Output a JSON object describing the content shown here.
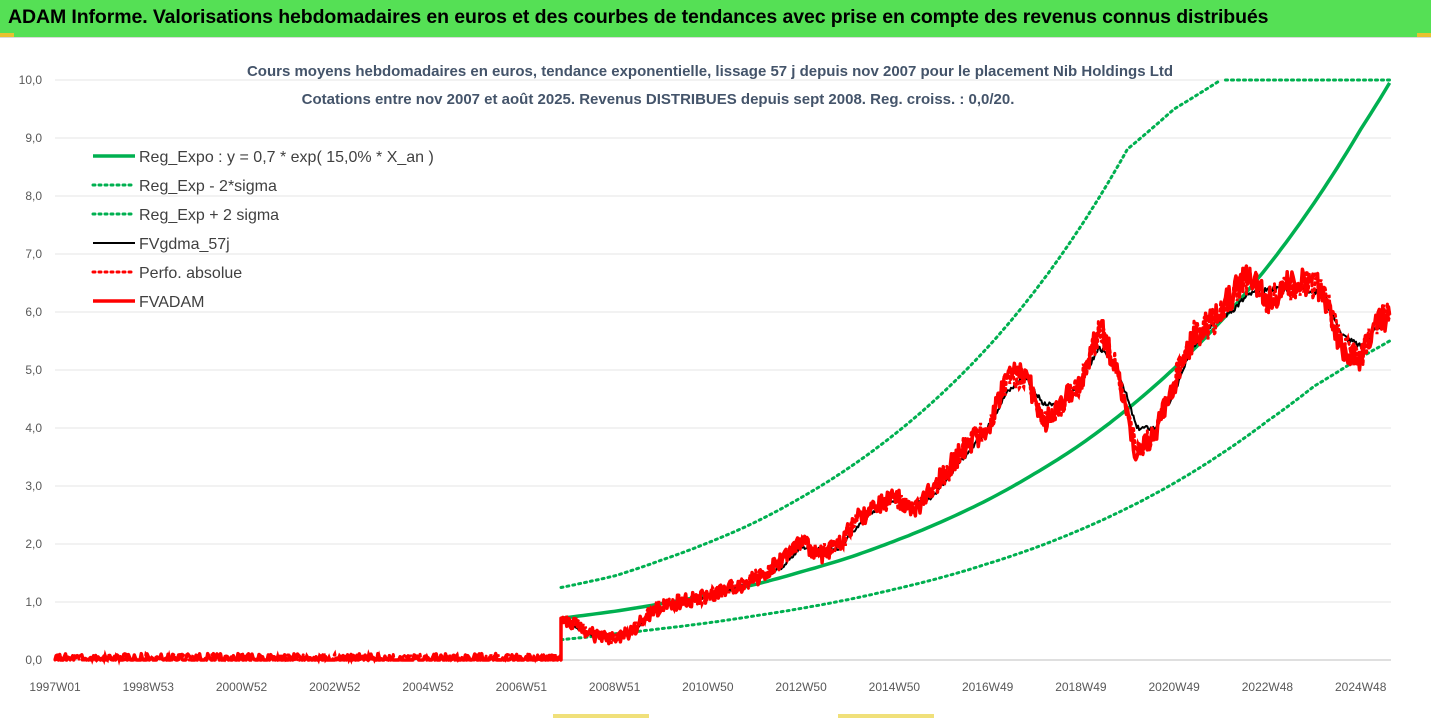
{
  "banner": {
    "title": "ADAM Informe. Valorisations hebdomadaires en euros et des courbes de tendances avec prise en compte des revenus connus distribués",
    "color": "#55e055"
  },
  "chart_data": {
    "type": "line",
    "title_lines": [
      "Cours moyens hebdomadaires en euros, tendance exponentielle, lissage 57 j depuis nov 2007 pour le placement Nib Holdings Ltd",
      "Cotations entre nov 2007 et août 2025.  Revenus DISTRIBUES depuis sept 2008.  Reg. croiss. : 0,0/20."
    ],
    "xlabel": "",
    "ylabel": "",
    "x_range": [
      1997.0,
      2025.65
    ],
    "ylim": [
      0,
      10
    ],
    "y_ticks": [
      "0,0",
      "1,0",
      "2,0",
      "3,0",
      "4,0",
      "5,0",
      "6,0",
      "7,0",
      "8,0",
      "9,0",
      "10,0"
    ],
    "x_ticks": [
      {
        "label": "1997W01",
        "x": 1997.0
      },
      {
        "label": "1998W53",
        "x": 1999.0
      },
      {
        "label": "2000W52",
        "x": 2001.0
      },
      {
        "label": "2002W52",
        "x": 2003.0
      },
      {
        "label": "2004W52",
        "x": 2005.0
      },
      {
        "label": "2006W51",
        "x": 2007.0
      },
      {
        "label": "2008W51",
        "x": 2009.0
      },
      {
        "label": "2010W50",
        "x": 2011.0
      },
      {
        "label": "2012W50",
        "x": 2013.0
      },
      {
        "label": "2014W50",
        "x": 2015.0
      },
      {
        "label": "2016W49",
        "x": 2017.0
      },
      {
        "label": "2018W49",
        "x": 2019.0
      },
      {
        "label": "2020W49",
        "x": 2021.0
      },
      {
        "label": "2022W48",
        "x": 2023.0
      },
      {
        "label": "2024W48",
        "x": 2025.0
      }
    ],
    "grid": "horizontal",
    "legend_placement": "top-left",
    "start_x": 2007.85,
    "end_x": 2025.62,
    "series": [
      {
        "name": "Reg_Expo : y = 0,7 * exp( 15,0% *  X_an )",
        "color": "#00b050",
        "style": "solid-thick",
        "x": [
          2007.85,
          2009,
          2010,
          2011,
          2012,
          2013,
          2014,
          2015,
          2016,
          2017,
          2018,
          2019,
          2020,
          2021,
          2022,
          2023,
          2024,
          2025,
          2025.62
        ],
        "values": [
          0.72,
          0.84,
          0.97,
          1.12,
          1.3,
          1.52,
          1.76,
          2.05,
          2.38,
          2.76,
          3.21,
          3.72,
          4.33,
          5.03,
          5.84,
          6.78,
          7.88,
          9.15,
          9.95
        ]
      },
      {
        "name": "Reg_Exp - 2*sigma",
        "color": "#00b050",
        "style": "dotted",
        "x": [
          2007.85,
          2009,
          2010,
          2011,
          2012,
          2013,
          2014,
          2015,
          2016,
          2017,
          2018,
          2019,
          2020,
          2021,
          2022,
          2023,
          2024,
          2025,
          2025.62
        ],
        "values": [
          0.35,
          0.45,
          0.54,
          0.64,
          0.76,
          0.89,
          1.04,
          1.22,
          1.42,
          1.66,
          1.93,
          2.25,
          2.62,
          3.05,
          3.55,
          4.12,
          4.72,
          5.22,
          5.5
        ]
      },
      {
        "name": "Reg_Exp + 2 sigma",
        "color": "#00b050",
        "style": "dotted",
        "x": [
          2007.85,
          2009,
          2010,
          2011,
          2012,
          2013,
          2014,
          2015,
          2016,
          2017,
          2018,
          2019,
          2020,
          2021,
          2022,
          2022.1,
          2025.62
        ],
        "values": [
          1.25,
          1.45,
          1.72,
          2.02,
          2.37,
          2.8,
          3.3,
          3.89,
          4.58,
          5.39,
          6.35,
          7.48,
          8.81,
          9.5,
          10.0,
          10.0,
          10.0
        ]
      },
      {
        "name": "FVgdma_57j",
        "color": "#000000",
        "style": "solid",
        "x": [
          2007.85,
          2008.2,
          2008.6,
          2009.0,
          2009.4,
          2009.8,
          2010.2,
          2010.6,
          2011.0,
          2011.4,
          2011.8,
          2012.2,
          2012.6,
          2013.0,
          2013.4,
          2013.8,
          2014.2,
          2014.6,
          2015.0,
          2015.4,
          2015.8,
          2016.2,
          2016.6,
          2017.0,
          2017.4,
          2017.8,
          2018.2,
          2018.6,
          2019.0,
          2019.4,
          2019.8,
          2020.2,
          2020.6,
          2021.0,
          2021.4,
          2021.8,
          2022.2,
          2022.6,
          2023.0,
          2023.4,
          2023.8,
          2024.2,
          2024.6,
          2025.0,
          2025.3,
          2025.62
        ],
        "values": [
          0.7,
          0.55,
          0.4,
          0.42,
          0.5,
          0.8,
          0.95,
          1.02,
          1.1,
          1.2,
          1.3,
          1.45,
          1.6,
          1.95,
          1.9,
          1.9,
          2.3,
          2.6,
          2.75,
          2.7,
          2.8,
          3.2,
          3.6,
          4.0,
          4.6,
          4.9,
          4.4,
          4.4,
          4.8,
          5.4,
          5.0,
          4.0,
          4.0,
          4.6,
          5.4,
          5.8,
          6.0,
          6.3,
          6.4,
          6.4,
          6.4,
          6.3,
          5.6,
          5.4,
          5.7,
          5.9
        ]
      },
      {
        "name": "Perfo. absolue",
        "color": "#ff0000",
        "style": "dotted",
        "x": [
          1997.0,
          2007.85,
          2007.85,
          2008.2,
          2008.6,
          2009.0,
          2009.4,
          2009.8,
          2010.2,
          2010.6,
          2011.0,
          2011.4,
          2011.8,
          2012.2,
          2012.6,
          2013.0,
          2013.4,
          2013.8,
          2014.2,
          2014.6,
          2015.0,
          2015.4,
          2015.8,
          2016.2,
          2016.6,
          2017.0,
          2017.4,
          2017.8,
          2018.2,
          2018.6,
          2019.0,
          2019.4,
          2019.8,
          2020.2,
          2020.6,
          2021.0,
          2021.4,
          2021.8,
          2022.2,
          2022.6,
          2023.0,
          2023.4,
          2023.8,
          2024.2,
          2024.6,
          2025.0,
          2025.3,
          2025.62
        ],
        "values": [
          0,
          0,
          0.7,
          0.6,
          0.4,
          0.38,
          0.5,
          0.85,
          0.98,
          1.0,
          1.12,
          1.2,
          1.3,
          1.5,
          1.7,
          2.0,
          1.85,
          1.95,
          2.4,
          2.65,
          2.8,
          2.6,
          2.9,
          3.3,
          3.8,
          4.0,
          4.8,
          4.9,
          4.1,
          4.4,
          4.8,
          5.7,
          5.0,
          3.6,
          3.9,
          4.8,
          5.6,
          5.8,
          6.2,
          6.6,
          6.2,
          6.4,
          6.5,
          6.4,
          5.4,
          5.2,
          5.8,
          6.0
        ]
      },
      {
        "name": "FVADAM",
        "color": "#ff0000",
        "style": "solid-thick",
        "x": [
          1997.0,
          2007.85,
          2007.85,
          2008.2,
          2008.6,
          2009.0,
          2009.4,
          2009.8,
          2010.2,
          2010.6,
          2011.0,
          2011.4,
          2011.8,
          2012.2,
          2012.6,
          2013.0,
          2013.4,
          2013.8,
          2014.2,
          2014.6,
          2015.0,
          2015.4,
          2015.8,
          2016.2,
          2016.6,
          2017.0,
          2017.4,
          2017.8,
          2018.2,
          2018.6,
          2019.0,
          2019.4,
          2019.8,
          2020.2,
          2020.6,
          2021.0,
          2021.4,
          2021.8,
          2022.2,
          2022.6,
          2023.0,
          2023.4,
          2023.8,
          2024.2,
          2024.6,
          2025.0,
          2025.3,
          2025.62
        ],
        "values": [
          0,
          0,
          0.72,
          0.58,
          0.42,
          0.36,
          0.52,
          0.82,
          0.96,
          1.04,
          1.1,
          1.22,
          1.32,
          1.48,
          1.75,
          2.05,
          1.8,
          2.0,
          2.45,
          2.6,
          2.85,
          2.55,
          2.95,
          3.35,
          3.75,
          3.95,
          4.9,
          5.0,
          4.05,
          4.45,
          4.75,
          5.8,
          4.9,
          3.5,
          3.95,
          4.75,
          5.55,
          5.85,
          6.25,
          6.7,
          6.2,
          6.45,
          6.55,
          6.35,
          5.35,
          5.2,
          5.8,
          5.95
        ]
      }
    ]
  }
}
